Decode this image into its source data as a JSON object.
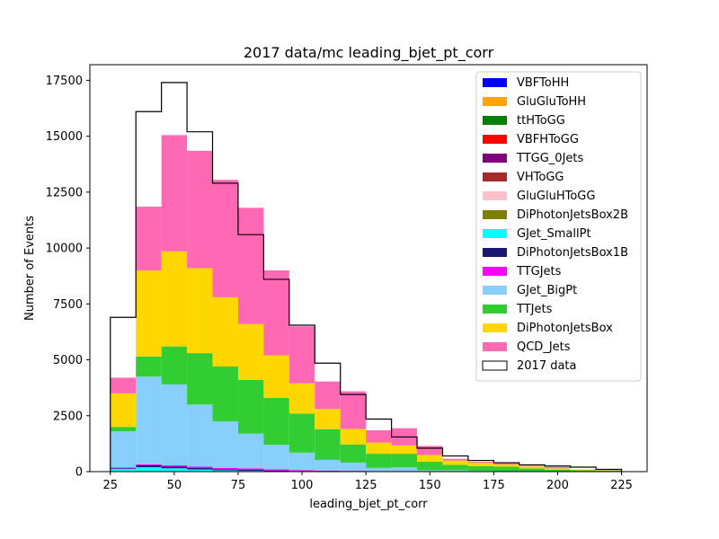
{
  "chart_data": {
    "type": "bar",
    "title": "2017 data/mc leading_bjet_pt_corr",
    "xlabel": "leading_bjet_pt_corr",
    "ylabel": "Number of Events",
    "xlim": [
      17,
      235
    ],
    "ylim": [
      0,
      18200
    ],
    "xticks": [
      "25",
      "50",
      "75",
      "100",
      "125",
      "150",
      "175",
      "200",
      "225"
    ],
    "yticks": [
      "0",
      "2500",
      "5000",
      "7500",
      "10000",
      "12500",
      "15000",
      "17500"
    ],
    "bin_edges": [
      25,
      35,
      45,
      55,
      65,
      75,
      85,
      95,
      105,
      115,
      125,
      135,
      145,
      155,
      165,
      175,
      185,
      195,
      205,
      215,
      225
    ],
    "legend_position": "upper-right",
    "series": [
      {
        "name": "VBFToHH",
        "color": "#0000ff",
        "values": [
          0,
          0,
          0,
          0,
          0,
          0,
          0,
          0,
          0,
          0,
          0,
          0,
          0,
          0,
          0,
          0,
          0,
          0,
          0,
          0
        ]
      },
      {
        "name": "GluGluToHH",
        "color": "#ffa500",
        "values": [
          0,
          0,
          0,
          0,
          0,
          0,
          0,
          0,
          0,
          0,
          0,
          0,
          0,
          0,
          0,
          0,
          0,
          0,
          0,
          0
        ]
      },
      {
        "name": "ttHToGG",
        "color": "#008000",
        "values": [
          0,
          0,
          0,
          0,
          0,
          0,
          0,
          0,
          0,
          0,
          0,
          0,
          0,
          0,
          0,
          0,
          0,
          0,
          0,
          0
        ]
      },
      {
        "name": "VBFHToGG",
        "color": "#ff0000",
        "values": [
          0,
          0,
          0,
          0,
          0,
          0,
          0,
          0,
          0,
          0,
          0,
          0,
          0,
          0,
          0,
          0,
          0,
          0,
          0,
          0
        ]
      },
      {
        "name": "TTGG_0Jets",
        "color": "#800080",
        "values": [
          0,
          0,
          0,
          0,
          0,
          0,
          0,
          0,
          0,
          0,
          0,
          0,
          0,
          0,
          0,
          0,
          0,
          0,
          0,
          0
        ]
      },
      {
        "name": "VHToGG",
        "color": "#a52a2a",
        "values": [
          0,
          0,
          0,
          0,
          0,
          0,
          0,
          0,
          0,
          0,
          0,
          0,
          0,
          0,
          0,
          0,
          0,
          0,
          0,
          0
        ]
      },
      {
        "name": "GluGluHToGG",
        "color": "#ffc0cb",
        "values": [
          0,
          0,
          0,
          0,
          0,
          0,
          0,
          0,
          0,
          0,
          0,
          0,
          0,
          0,
          0,
          0,
          0,
          0,
          0,
          0
        ]
      },
      {
        "name": "DiPhotonJetsBox2B",
        "color": "#808000",
        "values": [
          0,
          0,
          0,
          0,
          0,
          0,
          0,
          0,
          0,
          0,
          0,
          0,
          0,
          0,
          0,
          0,
          0,
          0,
          0,
          0
        ]
      },
      {
        "name": "GJet_SmallPt",
        "color": "#00ffff",
        "values": [
          120,
          200,
          150,
          100,
          60,
          40,
          20,
          10,
          5,
          5,
          0,
          0,
          0,
          0,
          0,
          0,
          0,
          0,
          0,
          0
        ]
      },
      {
        "name": "DiPhotonJetsBox1B",
        "color": "#191970",
        "values": [
          30,
          80,
          70,
          60,
          50,
          40,
          30,
          20,
          10,
          10,
          5,
          5,
          0,
          0,
          0,
          0,
          0,
          0,
          0,
          0
        ]
      },
      {
        "name": "TTGJets",
        "color": "#ff00ff",
        "values": [
          30,
          50,
          60,
          60,
          60,
          60,
          50,
          40,
          30,
          20,
          10,
          10,
          5,
          5,
          0,
          0,
          0,
          0,
          0,
          0
        ]
      },
      {
        "name": "GJet_BigPt",
        "color": "#87cefa",
        "values": [
          1620,
          3920,
          3620,
          2780,
          2080,
          1560,
          1100,
          780,
          480,
          370,
          150,
          175,
          60,
          60,
          30,
          20,
          20,
          10,
          0,
          0
        ]
      },
      {
        "name": "TTJets",
        "color": "#32cd32",
        "values": [
          200,
          900,
          1700,
          2300,
          2450,
          2400,
          2100,
          1750,
          1375,
          805,
          635,
          610,
          380,
          235,
          220,
          200,
          130,
          80,
          60,
          40
        ]
      },
      {
        "name": "DiPhotonJetsBox",
        "color": "#ffd700",
        "values": [
          1500,
          3850,
          4250,
          3800,
          3100,
          2500,
          1900,
          1350,
          900,
          700,
          500,
          370,
          300,
          200,
          150,
          100,
          80,
          60,
          40,
          20
        ]
      },
      {
        "name": "QCD_Jets",
        "color": "#ff69b4",
        "values": [
          700,
          2850,
          5200,
          5250,
          5250,
          5200,
          3800,
          2550,
          1230,
          1680,
          550,
          770,
          405,
          75,
          40,
          70,
          30,
          60,
          0,
          0
        ]
      }
    ],
    "data_series": {
      "name": "2017 data",
      "values": [
        6900,
        16100,
        17400,
        15200,
        12900,
        10600,
        8600,
        6550,
        4850,
        3450,
        2350,
        1550,
        1050,
        700,
        500,
        400,
        300,
        250,
        200,
        100
      ]
    }
  }
}
